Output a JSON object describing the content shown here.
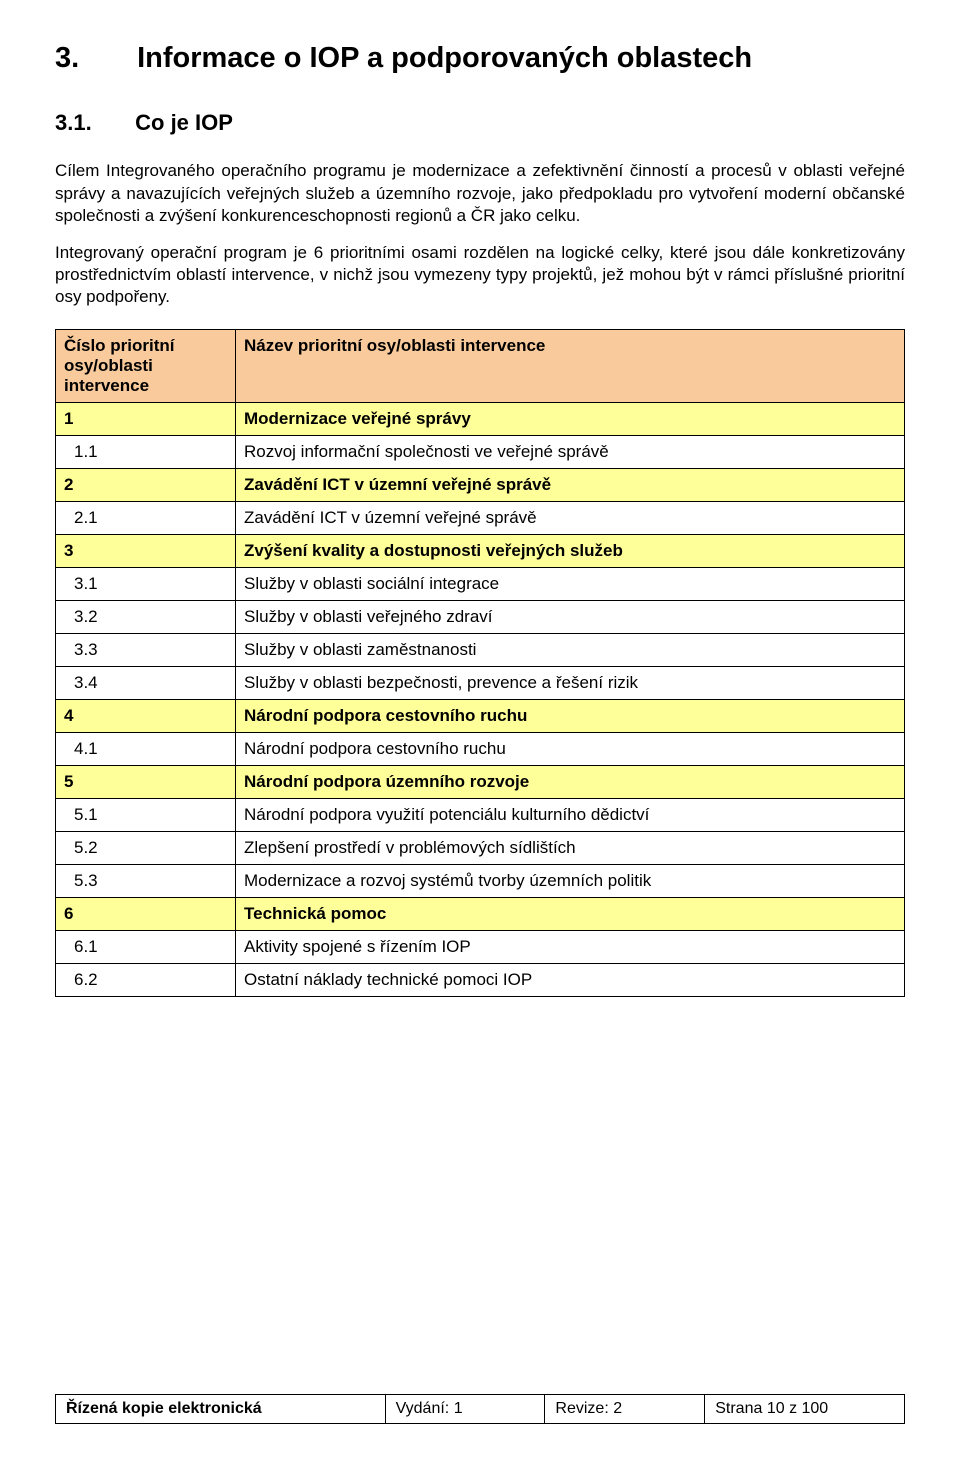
{
  "heading": {
    "number": "3.",
    "title": "Informace o IOP a podporovaných oblastech"
  },
  "subheading": {
    "number": "3.1.",
    "title": "Co je IOP"
  },
  "paragraphs": [
    "Cílem Integrovaného operačního programu je modernizace a zefektivnění činností a procesů v oblasti veřejné správy a navazujících veřejných služeb a územního rozvoje, jako předpokladu pro vytvoření moderní občanské společnosti a zvýšení konkurenceschopnosti regionů a ČR jako celku.",
    "Integrovaný operační program je 6 prioritními osami rozdělen na logické celky, které jsou dále konkretizovány prostřednictvím oblastí intervence, v nichž jsou vymezeny typy projektů, jež mohou být v rámci příslušné prioritní osy podpořeny."
  ],
  "table": {
    "header_left": "Číslo prioritní osy/oblasti intervence",
    "header_right": "Název prioritní osy/oblasti intervence",
    "colors": {
      "header_bg": "#f9cb9c",
      "axis_bg": "#ffff99",
      "border": "#000000"
    },
    "rows": [
      {
        "num": "1",
        "name": "Modernizace veřejné správy",
        "level": 0
      },
      {
        "num": "1.1",
        "name": "Rozvoj informační společnosti ve veřejné správě",
        "level": 1
      },
      {
        "num": "2",
        "name": "Zavádění ICT v územní veřejné správě",
        "level": 0
      },
      {
        "num": "2.1",
        "name": "Zavádění ICT v územní veřejné správě",
        "level": 1
      },
      {
        "num": "3",
        "name": "Zvýšení kvality a dostupnosti veřejných služeb",
        "level": 0
      },
      {
        "num": "3.1",
        "name": "Služby v oblasti sociální integrace",
        "level": 1
      },
      {
        "num": "3.2",
        "name": "Služby v oblasti veřejného zdraví",
        "level": 1
      },
      {
        "num": "3.3",
        "name": "Služby v oblasti zaměstnanosti",
        "level": 1
      },
      {
        "num": "3.4",
        "name": "Služby v oblasti bezpečnosti, prevence a řešení rizik",
        "level": 1
      },
      {
        "num": "4",
        "name": "Národní podpora cestovního ruchu",
        "level": 0
      },
      {
        "num": "4.1",
        "name": "Národní podpora cestovního ruchu",
        "level": 1
      },
      {
        "num": "5",
        "name": "Národní podpora územního rozvoje",
        "level": 0
      },
      {
        "num": "5.1",
        "name": "Národní podpora využití potenciálu kulturního dědictví",
        "level": 1
      },
      {
        "num": "5.2",
        "name": "Zlepšení prostředí v problémových sídlištích",
        "level": 1
      },
      {
        "num": "5.3",
        "name": "Modernizace a rozvoj systémů tvorby územních politik",
        "level": 1
      },
      {
        "num": "6",
        "name": "Technická pomoc",
        "level": 0
      },
      {
        "num": "6.1",
        "name": "Aktivity spojené s řízením IOP",
        "level": 1
      },
      {
        "num": "6.2",
        "name": "Ostatní náklady technické pomoci IOP",
        "level": 1
      }
    ]
  },
  "footer": {
    "doc_type": "Řízená kopie elektronická",
    "edition": "Vydání: 1",
    "revision": "Revize: 2",
    "page": "Strana 10 z 100"
  }
}
